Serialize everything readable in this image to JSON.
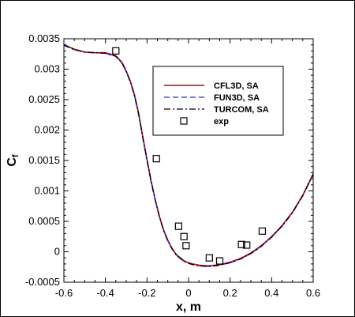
{
  "chart_data": {
    "type": "line",
    "xlabel": "x, m",
    "ylabel": "C",
    "ylabel_sub": "f",
    "xlim": [
      -0.6,
      0.6
    ],
    "ylim": [
      -0.0005,
      0.0035
    ],
    "xticks": [
      "-0.6",
      "-0.4",
      "-0.2",
      "0",
      "0.2",
      "0.4",
      "0.6"
    ],
    "yticks": [
      "-0.0005",
      "0",
      "0.0005",
      "0.001",
      "0.0015",
      "0.002",
      "0.0025",
      "0.003",
      "0.0035"
    ],
    "legend_position": "upper-right",
    "series": [
      {
        "name": "CFL3D, SA",
        "style": "solid",
        "color": "#cc0000",
        "x": [
          -0.6,
          -0.55,
          -0.5,
          -0.45,
          -0.4,
          -0.35,
          -0.32,
          -0.3,
          -0.28,
          -0.26,
          -0.24,
          -0.22,
          -0.2,
          -0.18,
          -0.16,
          -0.14,
          -0.12,
          -0.1,
          -0.08,
          -0.06,
          -0.04,
          -0.02,
          0,
          0.02,
          0.05,
          0.08,
          0.1,
          0.13,
          0.15,
          0.2,
          0.25,
          0.3,
          0.35,
          0.4,
          0.45,
          0.5,
          0.55,
          0.6
        ],
        "y": [
          0.0034,
          0.00333,
          0.00328,
          0.00327,
          0.00327,
          0.00322,
          0.00311,
          0.00297,
          0.0028,
          0.00258,
          0.00227,
          0.00188,
          0.00152,
          0.00116,
          0.00085,
          0.00058,
          0.00036,
          0.00019,
          6e-05,
          -4e-05,
          -0.0001,
          -0.00015,
          -0.00018,
          -0.0002,
          -0.00022,
          -0.00023,
          -0.00023,
          -0.00022,
          -0.00021,
          -0.00017,
          -0.00011,
          -2e-05,
          0.0001,
          0.00025,
          0.00043,
          0.00065,
          0.00093,
          0.00128
        ]
      },
      {
        "name": "FUN3D, SA",
        "style": "dashed",
        "color": "#1a33ff",
        "x": [
          -0.6,
          -0.55,
          -0.5,
          -0.45,
          -0.4,
          -0.35,
          -0.32,
          -0.3,
          -0.28,
          -0.26,
          -0.24,
          -0.22,
          -0.2,
          -0.18,
          -0.16,
          -0.14,
          -0.12,
          -0.1,
          -0.08,
          -0.06,
          -0.04,
          -0.02,
          0,
          0.02,
          0.05,
          0.08,
          0.1,
          0.13,
          0.15,
          0.2,
          0.25,
          0.3,
          0.35,
          0.4,
          0.45,
          0.5,
          0.55,
          0.6
        ],
        "y": [
          0.00339,
          0.00332,
          0.00328,
          0.00327,
          0.00326,
          0.00321,
          0.0031,
          0.00296,
          0.00279,
          0.00256,
          0.00225,
          0.00186,
          0.0015,
          0.00114,
          0.00084,
          0.00057,
          0.00035,
          0.00018,
          5e-05,
          -5e-05,
          -0.00011,
          -0.00016,
          -0.00019,
          -0.00021,
          -0.00023,
          -0.00024,
          -0.00024,
          -0.00023,
          -0.00022,
          -0.00018,
          -0.00012,
          -3e-05,
          9e-05,
          0.00024,
          0.00042,
          0.00064,
          0.00092,
          0.00127
        ]
      },
      {
        "name": "TURCOM, SA",
        "style": "dashdot",
        "color": "#000000",
        "x": [
          -0.6,
          -0.55,
          -0.5,
          -0.45,
          -0.4,
          -0.35,
          -0.32,
          -0.3,
          -0.28,
          -0.26,
          -0.24,
          -0.22,
          -0.2,
          -0.18,
          -0.16,
          -0.14,
          -0.12,
          -0.1,
          -0.08,
          -0.06,
          -0.04,
          -0.02,
          0,
          0.02,
          0.05,
          0.08,
          0.1,
          0.13,
          0.15,
          0.2,
          0.25,
          0.3,
          0.35,
          0.4,
          0.45,
          0.5,
          0.55,
          0.6
        ],
        "y": [
          0.0034,
          0.00332,
          0.00328,
          0.00327,
          0.00326,
          0.00321,
          0.0031,
          0.00296,
          0.00279,
          0.00256,
          0.00226,
          0.00187,
          0.00151,
          0.00115,
          0.00084,
          0.00057,
          0.00035,
          0.00018,
          5e-05,
          -5e-05,
          -0.00011,
          -0.00016,
          -0.00019,
          -0.00021,
          -0.00023,
          -0.00024,
          -0.00024,
          -0.00023,
          -0.00022,
          -0.00018,
          -0.00012,
          -3e-05,
          9e-05,
          0.00024,
          0.00042,
          0.00064,
          0.00092,
          0.00127
        ]
      },
      {
        "name": "exp",
        "style": "markers",
        "marker": "open-square",
        "color": "#000000",
        "x": [
          -0.35,
          -0.155,
          -0.048,
          -0.022,
          -0.012,
          0.1,
          0.15,
          0.255,
          0.28,
          0.355
        ],
        "y": [
          0.0033,
          0.00153,
          0.00042,
          0.00025,
          0.0001,
          -0.0001,
          -0.00015,
          0.00012,
          0.00011,
          0.00034
        ]
      }
    ]
  }
}
